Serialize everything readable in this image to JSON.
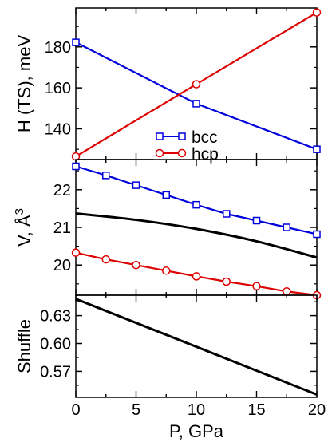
{
  "chart_data": [
    {
      "type": "line",
      "ylabel": "H (TS),  meV",
      "xlim": [
        0,
        20
      ],
      "ylim": [
        125,
        199
      ],
      "yticks": [
        140,
        160,
        180
      ],
      "series": [
        {
          "name": "bcc",
          "color": "#0000dd",
          "marker": "square",
          "x": [
            0,
            10,
            20
          ],
          "y": [
            182.2,
            152.3,
            130.0
          ]
        },
        {
          "name": "hcp",
          "color": "#dd0000",
          "marker": "circle",
          "x": [
            0,
            10,
            20
          ],
          "y": [
            126.5,
            161.8,
            196.8
          ]
        }
      ],
      "legend": {
        "position": "bottom-center",
        "entries": [
          "bcc",
          "hcp"
        ]
      }
    },
    {
      "type": "line",
      "ylabel": "V,  Å³",
      "ylabel_main": "V,  Å",
      "ylabel_sup": "3",
      "xlim": [
        0,
        20
      ],
      "ylim": [
        19.2,
        22.8
      ],
      "yticks": [
        20,
        21,
        22
      ],
      "series": [
        {
          "name": "bcc",
          "color": "#0000dd",
          "marker": "square",
          "x": [
            0,
            2.5,
            5,
            7.5,
            10,
            12.5,
            15,
            17.5,
            20
          ],
          "y": [
            22.62,
            22.38,
            22.12,
            21.86,
            21.6,
            21.36,
            21.18,
            21.0,
            20.82
          ]
        },
        {
          "name": "",
          "color": "#000000",
          "marker": "none",
          "x": [
            0,
            5,
            10,
            15,
            20
          ],
          "y": [
            21.37,
            21.2,
            20.96,
            20.63,
            20.2
          ]
        },
        {
          "name": "hcp",
          "color": "#dd0000",
          "marker": "circle",
          "x": [
            0,
            2.5,
            5,
            7.5,
            10,
            12.5,
            15,
            17.5,
            20
          ],
          "y": [
            20.33,
            20.15,
            20.0,
            19.85,
            19.7,
            19.56,
            19.44,
            19.3,
            19.2
          ]
        }
      ]
    },
    {
      "type": "line",
      "ylabel": "Shuffle",
      "xlabel": "P,  GPa",
      "xlim": [
        0,
        20
      ],
      "xticks": [
        0,
        5,
        10,
        15,
        20
      ],
      "ylim": [
        0.542,
        0.652
      ],
      "yticks": [
        0.57,
        0.6,
        0.63
      ],
      "ytick_labels": [
        "0.57",
        "0.60",
        "0.63"
      ],
      "series": [
        {
          "name": "",
          "color": "#000000",
          "marker": "none",
          "x": [
            0,
            20
          ],
          "y": [
            0.648,
            0.545
          ]
        }
      ]
    }
  ]
}
